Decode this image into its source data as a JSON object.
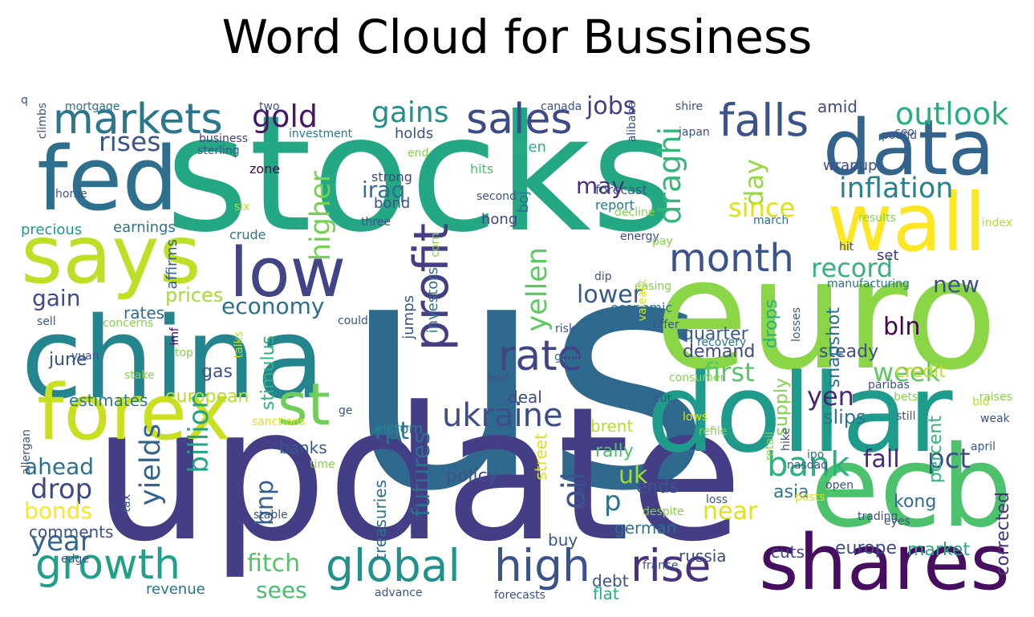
{
  "title": "Word Cloud for Bussiness",
  "words": [
    {
      "t": "us",
      "c": "#30698e"
    },
    {
      "t": "stocks",
      "c": "#24a884"
    },
    {
      "t": "update",
      "c": "#433e85"
    },
    {
      "t": "euro",
      "c": "#8bd646"
    },
    {
      "t": "china",
      "c": "#25858e"
    },
    {
      "t": "dollar",
      "c": "#1e9b8a"
    },
    {
      "t": "ecb",
      "c": "#4cc26c"
    },
    {
      "t": "shares",
      "c": "#470d60"
    },
    {
      "t": "fed",
      "c": "#2e6f8e"
    },
    {
      "t": "data",
      "c": "#32648e"
    },
    {
      "t": "says",
      "c": "#bddf26"
    },
    {
      "t": "forex",
      "c": "#c8e020"
    },
    {
      "t": "wall",
      "c": "#fde725"
    },
    {
      "t": "low",
      "c": "#414487"
    },
    {
      "t": "markets",
      "c": "#2a788e"
    },
    {
      "t": "sales",
      "c": "#3e4a89"
    },
    {
      "t": "falls",
      "c": "#3b528b"
    },
    {
      "t": "rate",
      "c": "#404588"
    },
    {
      "t": "profit",
      "c": "#433e85"
    },
    {
      "t": "st",
      "c": "#6ece58"
    },
    {
      "t": "month",
      "c": "#3a548c"
    },
    {
      "t": "growth",
      "c": "#1fa088"
    },
    {
      "t": "global",
      "c": "#21918c"
    },
    {
      "t": "high",
      "c": "#3b528b"
    },
    {
      "t": "rise",
      "c": "#46327e"
    },
    {
      "t": "ukraine",
      "c": "#3e4c8a"
    },
    {
      "t": "bank",
      "c": "#2db27d"
    },
    {
      "t": "inflation",
      "c": "#26828e"
    },
    {
      "t": "outlook",
      "c": "#28ae80"
    },
    {
      "t": "gains",
      "c": "#21918c"
    },
    {
      "t": "gold",
      "c": "#481668"
    },
    {
      "t": "rises",
      "c": "#3b528b"
    },
    {
      "t": "economy",
      "c": "#2c718e"
    },
    {
      "t": "record",
      "c": "#31b57b"
    },
    {
      "t": "higher",
      "c": "#75d054"
    },
    {
      "t": "yellen",
      "c": "#5ec962"
    },
    {
      "t": "draghi",
      "c": "#35b779"
    },
    {
      "t": "jobs",
      "c": "#423f85"
    },
    {
      "t": "day",
      "c": "#95d840"
    },
    {
      "t": "since",
      "c": "#dde318"
    },
    {
      "t": "iraq",
      "c": "#2d708e"
    },
    {
      "t": "may",
      "c": "#472d7b"
    },
    {
      "t": "first",
      "c": "#56c667"
    },
    {
      "t": "week",
      "c": "#5ec962"
    },
    {
      "t": "yen",
      "c": "#482576"
    },
    {
      "t": "bln",
      "c": "#440154"
    },
    {
      "t": "fall",
      "c": "#482878"
    },
    {
      "t": "pct",
      "c": "#3e4c8a"
    },
    {
      "t": "uk",
      "c": "#a2da37"
    },
    {
      "t": "near",
      "c": "#dde318"
    },
    {
      "t": "oil",
      "c": "#3b528b"
    },
    {
      "t": "futures",
      "c": "#2e6e8e"
    },
    {
      "t": "yields",
      "c": "#33638d"
    },
    {
      "t": "billion",
      "c": "#20a386"
    },
    {
      "t": "bnp",
      "c": "#355f8d"
    },
    {
      "t": "fitch",
      "c": "#52c569"
    },
    {
      "t": "sees",
      "c": "#46c06f"
    },
    {
      "t": "year",
      "c": "#31688e"
    },
    {
      "t": "drop",
      "c": "#3e4989"
    },
    {
      "t": "ahead",
      "c": "#2d708e"
    },
    {
      "t": "bonds",
      "c": "#fde725"
    },
    {
      "t": "gain",
      "c": "#3e4a89"
    },
    {
      "t": "lower",
      "c": "#38598c"
    },
    {
      "t": "new",
      "c": "#3e4c8a"
    },
    {
      "t": "rpt",
      "c": "#2a788e"
    },
    {
      "t": "p",
      "c": "#2c728e"
    },
    {
      "t": "quarter",
      "c": "#365c8d"
    },
    {
      "t": "demand",
      "c": "#3f4889"
    },
    {
      "t": "steady",
      "c": "#3d4e8a"
    },
    {
      "t": "snapshot",
      "c": "#2c728e"
    },
    {
      "t": "drops",
      "c": "#29af7f"
    },
    {
      "t": "credit",
      "c": "#c2df23"
    },
    {
      "t": "supply",
      "c": "#84d44b"
    },
    {
      "t": "slips",
      "c": "#2c718e"
    },
    {
      "t": "percent",
      "c": "#32b67a"
    },
    {
      "t": "europe",
      "c": "#3e4989"
    },
    {
      "t": "market",
      "c": "#22a884"
    },
    {
      "t": "kong",
      "c": "#2e6f8e"
    },
    {
      "t": "asia",
      "c": "#2a768e"
    },
    {
      "t": "corrected",
      "c": "#46327e"
    },
    {
      "t": "markets",
      "c": "#2a788e"
    },
    {
      "t": "prices",
      "c": "#a8db34"
    },
    {
      "t": "rates",
      "c": "#31688e"
    },
    {
      "t": "june",
      "c": "#3b528b"
    },
    {
      "t": "gas",
      "c": "#39568c"
    },
    {
      "t": "stimulus",
      "c": "#2db27d"
    },
    {
      "t": "european",
      "c": "#b5de2b"
    },
    {
      "t": "estimates",
      "c": "#2a788e"
    },
    {
      "t": "banks",
      "c": "#38598c"
    },
    {
      "t": "deal",
      "c": "#3e4c8a"
    },
    {
      "t": "policy",
      "c": "#3b528b"
    },
    {
      "t": "alstom",
      "c": "#26828e"
    },
    {
      "t": "brent",
      "c": "#b5de2b"
    },
    {
      "t": "rally",
      "c": "#4ac16d"
    },
    {
      "t": "ends",
      "c": "#39568c"
    },
    {
      "t": "german",
      "c": "#2c728e"
    },
    {
      "t": "russia",
      "c": "#3e4c8a"
    },
    {
      "t": "cuts",
      "c": "#3f4788"
    },
    {
      "t": "debt",
      "c": "#3b528b"
    },
    {
      "t": "flat",
      "c": "#2ab07f"
    },
    {
      "t": "buy",
      "c": "#3b528b"
    },
    {
      "t": "revenue",
      "c": "#2c728e"
    },
    {
      "t": "comments",
      "c": "#3b528b"
    },
    {
      "t": "precious",
      "c": "#1f998a"
    },
    {
      "t": "earnings",
      "c": "#2c728e"
    },
    {
      "t": "affirms",
      "c": "#35608d"
    },
    {
      "t": "crude",
      "c": "#2a788e"
    },
    {
      "t": "zone",
      "c": "#440154"
    },
    {
      "t": "strong",
      "c": "#3f4889"
    },
    {
      "t": "bond",
      "c": "#3b528b"
    },
    {
      "t": "hong",
      "c": "#414487"
    },
    {
      "t": "hits",
      "c": "#4ac16d"
    },
    {
      "t": "boj",
      "c": "#2c728e"
    },
    {
      "t": "forecast",
      "c": "#38598c"
    },
    {
      "t": "report",
      "c": "#2c728e"
    },
    {
      "t": "amid",
      "c": "#3e4989"
    },
    {
      "t": "wrapup",
      "c": "#3e4c8a"
    },
    {
      "t": "set",
      "c": "#443983"
    },
    {
      "t": "seen",
      "c": "#27ad81"
    },
    {
      "t": "holds",
      "c": "#3b528b"
    },
    {
      "t": "business",
      "c": "#433e85"
    },
    {
      "t": "investment",
      "c": "#2a788e"
    },
    {
      "t": "mortgage",
      "c": "#2c728e"
    },
    {
      "t": "two",
      "c": "#3b528b"
    },
    {
      "t": "canada",
      "c": "#3b528b"
    },
    {
      "t": "alibaba",
      "c": "#3b528b"
    },
    {
      "t": "shire",
      "c": "#3b528b"
    },
    {
      "t": "climbs",
      "c": "#3b528b"
    },
    {
      "t": "sterling",
      "c": "#3b528b"
    },
    {
      "t": "home",
      "c": "#3b528b"
    },
    {
      "t": "six",
      "c": "#b5de2b"
    },
    {
      "t": "second",
      "c": "#3b528b"
    },
    {
      "t": "decline",
      "c": "#84d44b"
    },
    {
      "t": "march",
      "c": "#2c728e"
    },
    {
      "t": "results",
      "c": "#84d44b"
    },
    {
      "t": "index",
      "c": "#b5de2b"
    },
    {
      "t": "hit",
      "c": "#3b528b"
    },
    {
      "t": "three",
      "c": "#3b528b"
    },
    {
      "t": "corn",
      "c": "#84d44b"
    },
    {
      "t": "energy",
      "c": "#3e4989"
    },
    {
      "t": "pay",
      "c": "#84d44b"
    },
    {
      "t": "manufacturing",
      "c": "#2c728e"
    },
    {
      "t": "dip",
      "c": "#3b528b"
    },
    {
      "t": "easing",
      "c": "#84d44b"
    },
    {
      "t": "jumps",
      "c": "#3b528b"
    },
    {
      "t": "investors",
      "c": "#2c728e"
    },
    {
      "t": "economic",
      "c": "#2c728e"
    },
    {
      "t": "offer",
      "c": "#3b528b"
    },
    {
      "t": "risk",
      "c": "#3b528b"
    },
    {
      "t": "sell",
      "c": "#3b528b"
    },
    {
      "t": "concerns",
      "c": "#84d44b"
    },
    {
      "t": "could",
      "c": "#3b528b"
    },
    {
      "t": "imf",
      "c": "#440154"
    },
    {
      "t": "top",
      "c": "#84d44b"
    },
    {
      "t": "talks",
      "c": "#b5de2b"
    },
    {
      "t": "stake",
      "c": "#84d44b"
    },
    {
      "t": "yuan",
      "c": "#3b528b"
    },
    {
      "t": "boe",
      "c": "#3b528b"
    },
    {
      "t": "grains",
      "c": "#2c728e"
    },
    {
      "t": "recovery",
      "c": "#2c728e"
    },
    {
      "t": "consumer",
      "c": "#84d44b"
    },
    {
      "t": "losses",
      "c": "#3b528b"
    },
    {
      "t": "paribas",
      "c": "#3b528b"
    },
    {
      "t": "bets",
      "c": "#84d44b"
    },
    {
      "t": "raises",
      "c": "#84d44b"
    },
    {
      "t": "still",
      "c": "#3b528b"
    },
    {
      "t": "weak",
      "c": "#3b528b"
    },
    {
      "t": "april",
      "c": "#3b528b"
    },
    {
      "t": "bid",
      "c": "#b5de2b"
    },
    {
      "t": "cut",
      "c": "#3b528b"
    },
    {
      "t": "ge",
      "c": "#3b528b"
    },
    {
      "t": "sanctions",
      "c": "#dde318"
    },
    {
      "t": "time",
      "c": "#84d44b"
    },
    {
      "t": "tax",
      "c": "#3b528b"
    },
    {
      "t": "allergan",
      "c": "#3b528b"
    },
    {
      "t": "lows",
      "c": "#dde318"
    },
    {
      "t": "refile",
      "c": "#84d44b"
    },
    {
      "t": "loss",
      "c": "#3b528b"
    },
    {
      "t": "ipo",
      "c": "#2c728e"
    },
    {
      "t": "retail",
      "c": "#84d44b"
    },
    {
      "t": "hike",
      "c": "#3b528b"
    },
    {
      "t": "asian",
      "c": "#3b528b"
    },
    {
      "t": "despite",
      "c": "#84d44b"
    },
    {
      "t": "trading",
      "c": "#3b528b"
    },
    {
      "t": "nasdaq",
      "c": "#3b528b"
    },
    {
      "t": "posts",
      "c": "#dde318"
    },
    {
      "t": "open",
      "c": "#3b528b"
    },
    {
      "t": "eyes",
      "c": "#3b528b"
    },
    {
      "t": "france",
      "c": "#3b528b"
    },
    {
      "t": "stable",
      "c": "#3b528b"
    },
    {
      "t": "edge",
      "c": "#3b528b"
    },
    {
      "t": "advance",
      "c": "#3b528b"
    },
    {
      "t": "forecasts",
      "c": "#3b528b"
    },
    {
      "t": "street",
      "c": "#dde318"
    },
    {
      "t": "treasuries",
      "c": "#2c728e"
    },
    {
      "t": "japan",
      "c": "#3b528b"
    },
    {
      "t": "pound",
      "c": "#3b528b"
    },
    {
      "t": "ceo",
      "c": "#3b528b"
    },
    {
      "t": "valeant",
      "c": "#dde318"
    },
    {
      "t": "end",
      "c": "#84d44b"
    },
    {
      "t": "q",
      "c": "#3b528b"
    }
  ]
}
